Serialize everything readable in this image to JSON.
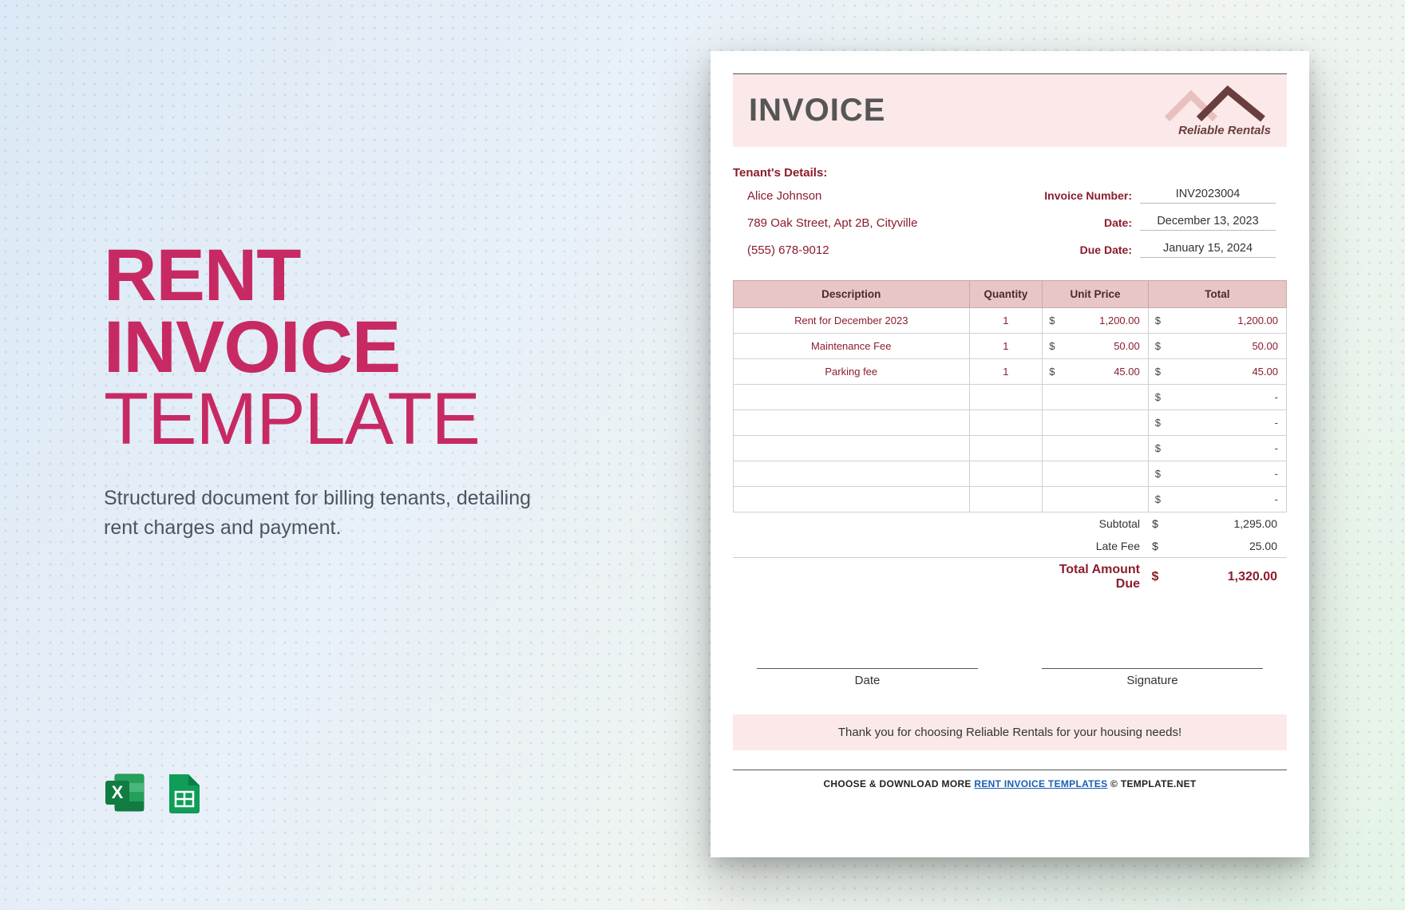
{
  "promo": {
    "title_line1": "RENT",
    "title_line2": "INVOICE",
    "title_line3": "TEMPLATE",
    "subtitle": "Structured document for billing tenants, detailing rent charges and payment.",
    "title_color": "#c72a63",
    "subtitle_color": "#4a5560"
  },
  "icons": {
    "excel": {
      "bg": "#1d6f42",
      "bg2": "#107c41",
      "label": "X"
    },
    "sheets": {
      "bg": "#0f9d58",
      "label": "sheets"
    }
  },
  "invoice": {
    "header_title": "INVOICE",
    "band_bg": "#fbe9e9",
    "company_name": "Reliable Rentals",
    "logo_color1": "#6a3e3e",
    "logo_color2": "#e8c0c0",
    "tenant_header": "Tenant's Details:",
    "tenant": {
      "name": "Alice Johnson",
      "address": "789 Oak Street, Apt 2B, Cityville",
      "phone": "(555) 678-9012"
    },
    "meta": {
      "invoice_number_label": "Invoice Number:",
      "invoice_number": "INV2023004",
      "date_label": "Date:",
      "date": "December 13, 2023",
      "due_date_label": "Due Date:",
      "due_date": "January 15, 2024"
    },
    "columns": {
      "description": "Description",
      "quantity": "Quantity",
      "unit_price": "Unit Price",
      "total": "Total"
    },
    "currency": "$",
    "rows": [
      {
        "desc": "Rent for December 2023",
        "qty": "1",
        "price": "1,200.00",
        "total": "1,200.00"
      },
      {
        "desc": "Maintenance Fee",
        "qty": "1",
        "price": "50.00",
        "total": "50.00"
      },
      {
        "desc": "Parking fee",
        "qty": "1",
        "price": "45.00",
        "total": "45.00"
      }
    ],
    "empty_rows": 5,
    "summary": {
      "subtotal_label": "Subtotal",
      "subtotal": "1,295.00",
      "late_fee_label": "Late Fee",
      "late_fee": "25.00",
      "total_label": "Total Amount Due",
      "total": "1,320.00"
    },
    "signature": {
      "date_label": "Date",
      "sig_label": "Signature"
    },
    "thanks": "Thank you for choosing Reliable Rentals for your housing needs!",
    "footer": {
      "prefix": "CHOOSE & DOWNLOAD MORE ",
      "link_text": "RENT INVOICE TEMPLATES",
      "suffix": "  ©  TEMPLATE.NET"
    }
  },
  "styling": {
    "table_header_bg": "#e8c6c6",
    "accent_text": "#8b1d2e",
    "border_color": "#d0d0d0"
  }
}
